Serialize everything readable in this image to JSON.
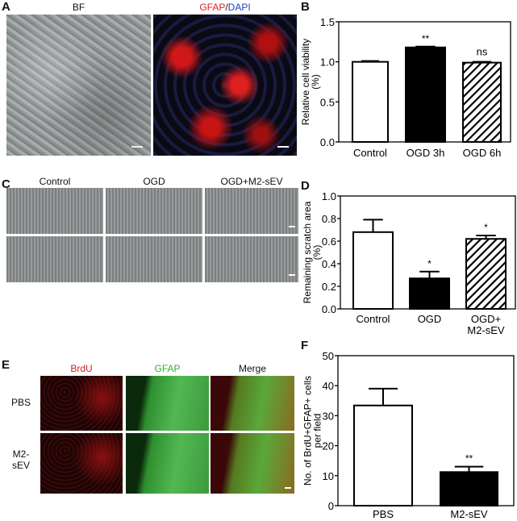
{
  "panels": {
    "A": {
      "letter": "A",
      "bf_label": "BF",
      "gfap_label": "GFAP",
      "sep": "/",
      "dapi_label": "DAPI"
    },
    "B": {
      "letter": "B"
    },
    "C": {
      "letter": "C",
      "columns": [
        "Control",
        "OGD",
        "OGD+M2-sEV"
      ]
    },
    "D": {
      "letter": "D"
    },
    "E": {
      "letter": "E",
      "columns": [
        "BrdU",
        "GFAP",
        "Merge"
      ],
      "rows": [
        "PBS",
        "M2-\nsEV"
      ]
    },
    "F": {
      "letter": "F"
    }
  },
  "colors": {
    "gfap": "#e02020",
    "dapi": "#2040c0",
    "brdu": "#d02020",
    "green": "#30b030"
  },
  "chart_data": [
    {
      "type": "bar",
      "panel": "B",
      "categories": [
        "Control",
        "OGD 3h",
        "OGD 6h"
      ],
      "values": [
        1.0,
        1.18,
        0.99
      ],
      "errors": [
        0.01,
        0.01,
        0.01
      ],
      "fills": [
        "white",
        "black",
        "hatch"
      ],
      "annotations": [
        "",
        "**",
        "ns"
      ],
      "ylabel": "Relative cell viability (%)",
      "ylim": [
        0,
        1.5
      ],
      "yticks": [
        "0.0",
        "0.5",
        "1.0",
        "1.5"
      ]
    },
    {
      "type": "bar",
      "panel": "D",
      "categories": [
        "Control",
        "OGD",
        "OGD+\nM2-sEV"
      ],
      "values": [
        0.68,
        0.27,
        0.62
      ],
      "errors": [
        0.11,
        0.06,
        0.03
      ],
      "fills": [
        "white",
        "black",
        "hatch"
      ],
      "annotations": [
        "",
        "*",
        "*"
      ],
      "ylabel": "Remaining scratch area (%)",
      "ylim": [
        0,
        1.0
      ],
      "yticks": [
        "0.0",
        "0.2",
        "0.4",
        "0.6",
        "0.8",
        "1.0"
      ]
    },
    {
      "type": "bar",
      "panel": "F",
      "categories": [
        "PBS",
        "M2-sEV"
      ],
      "values": [
        33.4,
        11.2
      ],
      "errors": [
        5.6,
        1.8
      ],
      "fills": [
        "white",
        "black"
      ],
      "annotations": [
        "",
        "**"
      ],
      "ylabel": "No. of BrdU+GFAP+ cells per field",
      "ylim": [
        0,
        50
      ],
      "yticks": [
        "0",
        "10",
        "20",
        "30",
        "40",
        "50"
      ]
    }
  ]
}
